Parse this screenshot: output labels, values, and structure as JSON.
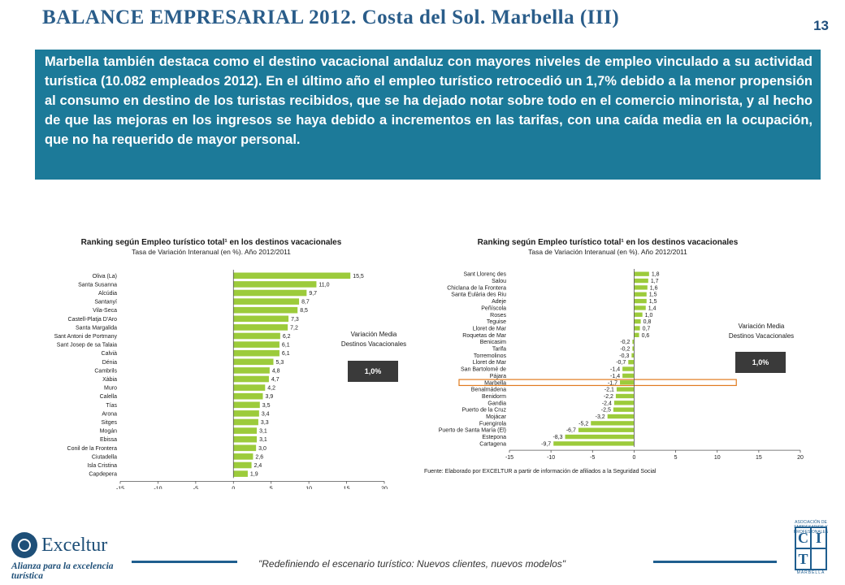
{
  "header": {
    "title": "BALANCE EMPRESARIAL 2012. Costa del Sol. Marbella (III)",
    "page_number": "13"
  },
  "intro_text": "Marbella también destaca como el destino vacacional andaluz con mayores niveles de empleo vinculado a su actividad turística (10.082 empleados 2012). En el último año el empleo turístico retrocedió un 1,7% debido a la menor propensión al consumo en destino de los turistas recibidos,  que se ha dejado notar sobre todo en el comercio minorista, y  al hecho de que las mejoras en los ingresos se haya debido a incrementos en las tarifas, con una caída media en la ocupación, que no ha requerido de mayor personal.",
  "colors": {
    "bar": "#9ccb3b",
    "accent": "#1c7a99",
    "title": "#2a5d8a",
    "highlight": "#e07b1f",
    "box": "#3a3a3a"
  },
  "chart_data": [
    {
      "type": "bar",
      "orientation": "horizontal",
      "title": "Ranking según Empleo turístico total¹ en los destinos vacacionales",
      "subtitle": "Tasa de Variación Interanual (en %). Año 2012/2011",
      "categories": [
        "Oliva (La)",
        "Santa Susanna",
        "Alcúdia",
        "Santanyí",
        "Vila-Seca",
        "Castell-Platja D'Aro",
        "Santa Margalida",
        "Sant Antoni de Portmany",
        "Sant Josep de sa Talaia",
        "Calvià",
        "Dénia",
        "Cambrils",
        "Xàbia",
        "Muro",
        "Calella",
        "Tías",
        "Arona",
        "Sitges",
        "Mogán",
        "Ebissa",
        "Conil de la Frontera",
        "Ciutadella",
        "Isla Cristina",
        "Capdepera"
      ],
      "values": [
        15.5,
        11.0,
        9.7,
        8.7,
        8.5,
        7.3,
        7.2,
        6.2,
        6.1,
        6.1,
        5.3,
        4.8,
        4.7,
        4.2,
        3.9,
        3.5,
        3.4,
        3.3,
        3.1,
        3.1,
        3.0,
        2.6,
        2.4,
        1.9
      ],
      "value_labels": [
        "15,5",
        "11,0",
        "9,7",
        "8,7",
        "8,5",
        "7,3",
        "7,2",
        "6,2",
        "6,1",
        "6,1",
        "5,3",
        "4,8",
        "4,7",
        "4,2",
        "3,9",
        "3,5",
        "3,4",
        "3,3",
        "3,1",
        "3,1",
        "3,0",
        "2,6",
        "2,4",
        "1,9"
      ],
      "xlim": [
        -15,
        20
      ],
      "xticks": [
        "-15",
        "-10",
        "-5",
        "0",
        "5",
        "10",
        "15",
        "20"
      ],
      "grid": false,
      "annotation": {
        "label": "Variación Media Destinos Vacacionales",
        "value": "1,0%"
      },
      "source": "Fuente: Elaborado por EXCELTUR a partir de información de afiliados a la Seguridad Social"
    },
    {
      "type": "bar",
      "orientation": "horizontal",
      "title": "Ranking según Empleo turístico total¹ en los destinos vacacionales",
      "subtitle": "Tasa de Variación Interanual (en %). Año 2012/2011",
      "categories": [
        "Sant Llorenç des",
        "Salou",
        "Chiclana de la Frontera",
        "Santa Eulària des Riu",
        "Adeje",
        "Peñíscola",
        "Roses",
        "Teguise",
        "Lloret de Mar",
        "Roquetas de Mar",
        "Benicasim",
        "Tarifa",
        "Torremolinos",
        "Lloret de Mar",
        "San Bartolomé de",
        "Pájara",
        "Marbella",
        "Benalmádena",
        "Benidorm",
        "Gandia",
        "Puerto de la Cruz",
        "Mojácar",
        "Fuengirola",
        "Puerto de Santa María (El)",
        "Estepona",
        "Cartagena"
      ],
      "values": [
        1.8,
        1.7,
        1.6,
        1.5,
        1.5,
        1.4,
        1.0,
        0.8,
        0.7,
        0.6,
        -0.2,
        -0.2,
        -0.3,
        -0.7,
        -1.4,
        -1.4,
        -1.7,
        -2.1,
        -2.2,
        -2.4,
        -2.5,
        -3.2,
        -5.2,
        -6.7,
        -8.3,
        -9.7
      ],
      "value_labels": [
        "1,8",
        "1,7",
        "1,6",
        "1,5",
        "1,5",
        "1,4",
        "1,0",
        "0,8",
        "0,7",
        "0,6",
        "-0,2",
        "-0,2",
        "-0,3",
        "-0,7",
        "-1,4",
        "-1,4",
        "-1,7",
        "-2,1",
        "-2,2",
        "-2,4",
        "-2,5",
        "-3,2",
        "-5,2",
        "-6,7",
        "-8,3",
        "-9,7"
      ],
      "highlight": "Marbella",
      "xlim": [
        -15,
        20
      ],
      "xticks": [
        "-15",
        "-10",
        "-5",
        "0",
        "5",
        "10",
        "15",
        "20"
      ],
      "grid": false,
      "annotation": {
        "label": "Variación Media Destinos Vacacionales",
        "value": "1,0%"
      },
      "source": "Fuente: Elaborado por EXCELTUR a partir de información de afiliados a la Seguridad Social"
    }
  ],
  "footer": {
    "tagline": "\"Redefiniendo el escenario turístico: Nuevos clientes, nuevos modelos\"",
    "logo_name": "Exceltur",
    "logo_tagline": "Alianza para la excelencia turística",
    "logo_icon": "exceltur-logo-icon",
    "cit_letters": [
      "C",
      "I",
      "T",
      ""
    ],
    "cit_top": "ASOCIACIÓN DE EMPRESARIOS Y PROFESIONALES",
    "cit_bottom": "MARBELLA"
  }
}
